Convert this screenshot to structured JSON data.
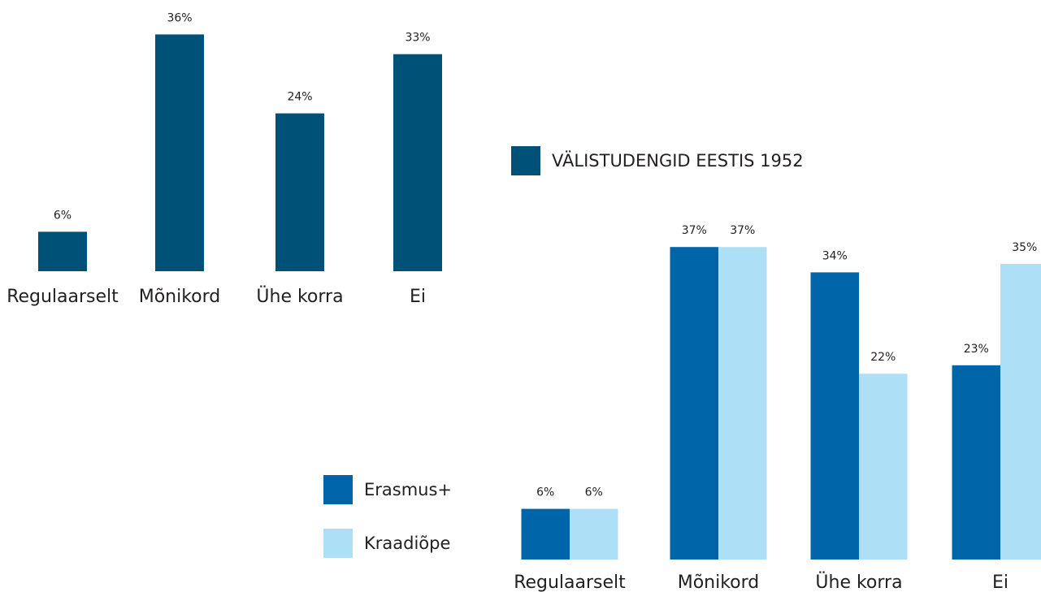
{
  "chart_data": [
    {
      "type": "bar",
      "categories": [
        "Regulaarselt",
        "Mõnikord",
        "Ühe korra",
        "Ei"
      ],
      "series": [
        {
          "name": "VÄLISTUDENGID EESTIS 1952",
          "color": "#005178",
          "values": [
            6,
            36,
            24,
            33
          ],
          "value_labels": [
            "6%",
            "36%",
            "24%",
            "33%"
          ]
        }
      ]
    },
    {
      "type": "bar",
      "categories": [
        "Regulaarselt",
        "Mõnikord",
        "Ühe korra",
        "Ei"
      ],
      "series": [
        {
          "name": "Erasmus+",
          "color": "#0064a8",
          "values": [
            6,
            37,
            34,
            23
          ],
          "value_labels": [
            "6%",
            "37%",
            "34%",
            "23%"
          ]
        },
        {
          "name": "Kraadiõpe",
          "color": "#addff7",
          "values": [
            6,
            37,
            22,
            35
          ],
          "value_labels": [
            "6%",
            "37%",
            "22%",
            "35%"
          ]
        }
      ]
    }
  ]
}
